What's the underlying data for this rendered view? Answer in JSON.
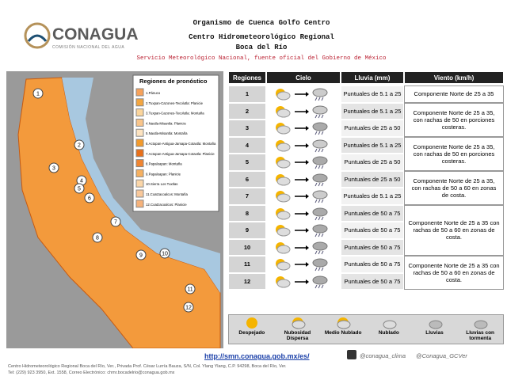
{
  "header": {
    "logo": "CONAGUA",
    "logo_subtitle": "COMISIÓN NACIONAL DEL AGUA",
    "title": "Organismo de Cuenca Golfo Centro",
    "subtitle": "Centro Hidrometeorológico Regional",
    "location": "Boca del Río",
    "source": "Servicio Meteorológico Nacional, fuente oficial del Gobierno de México"
  },
  "map": {
    "legend_title": "Regiones de pronóstico",
    "legend": [
      {
        "label": "1.Pánuco",
        "color": "#f7a25a"
      },
      {
        "label": "2.Tuxpan-Cazones-Tecolutla: Planicie",
        "color": "#f4a640"
      },
      {
        "label": "3.Tuxpan-Cazones-Tecolutla: Montaña",
        "color": "#fbd59c"
      },
      {
        "label": "4.Nautla-Misantla: Planicie",
        "color": "#f9c58a"
      },
      {
        "label": "5.Nautla-Misantla: Montaña",
        "color": "#fde3c0"
      },
      {
        "label": "6.Actopan-Antigua-Jamapa-Cotaxtla: Montaña",
        "color": "#f39a2c"
      },
      {
        "label": "7.Actopan-Antigua-Jamapa-Cotaxtla: Planicie",
        "color": "#e8701a"
      },
      {
        "label": "8.Papaloapan: Montaña",
        "color": "#f08530"
      },
      {
        "label": "9.Papaloapan: Planicie",
        "color": "#f6b060"
      },
      {
        "label": "10.Sierra Los Tuxtlas",
        "color": "#fbd6a8"
      },
      {
        "label": "11.Coatzacoalcos: Montaña",
        "color": "#f9c89a"
      },
      {
        "label": "12.Coatzacoalcos: Planicie",
        "color": "#f6b27a"
      }
    ],
    "region_labels": [
      "1",
      "2",
      "3",
      "4",
      "5",
      "6",
      "7",
      "8",
      "9",
      "10",
      "11",
      "12"
    ]
  },
  "table": {
    "headers": [
      "Regiones",
      "Cielo",
      "Lluvia (mm)",
      "Viento (km/h)"
    ],
    "rows": [
      {
        "region": "1",
        "lluvia": "Puntuales de 5.1 a 25",
        "viento": "Componente Norte de 25 a 35"
      },
      {
        "region": "2",
        "lluvia": "Puntuales de 5.1 a 25",
        "viento": "Componente Norte de 25 a 35, con rachas de 50 en porciones costeras."
      },
      {
        "region": "3",
        "lluvia": "Puntuales de 25 a 50",
        "viento": null
      },
      {
        "region": "4",
        "lluvia": "Puntuales de 5.1 a 25",
        "viento": "Componente Norte de 25 a 35, con rachas de 50 en porciones costeras."
      },
      {
        "region": "5",
        "lluvia": "Puntuales de 25 a 50",
        "viento": null
      },
      {
        "region": "6",
        "lluvia": "Puntuales de 25 a 50",
        "viento": "Componente Norte de 25 a 35, con rachas de 50 a 60 en zonas de costa."
      },
      {
        "region": "7",
        "lluvia": "Puntuales de 5.1 a 25",
        "viento": null
      },
      {
        "region": "8",
        "lluvia": "Puntuales de 50 a 75",
        "viento": "Componente Norte de 25 a 35 con rachas de 50 a 60 en zonas de costa."
      },
      {
        "region": "9",
        "lluvia": "Puntuales de 50 a 75",
        "viento": null
      },
      {
        "region": "10",
        "lluvia": "Puntuales de 50 a 75",
        "viento": null
      },
      {
        "region": "11",
        "lluvia": "Puntuales de 50 a 75",
        "viento": "Componente Norte de 25 a 35 con rachas de 50 a 60 en zonas de costa."
      },
      {
        "region": "12",
        "lluvia": "Puntuales de 50 a 75",
        "viento": null
      }
    ]
  },
  "sky_legend": [
    "Despejado",
    "Nubosidad Dispersa",
    "Medio Nublado",
    "Nublado",
    "Lluvias",
    "Lluvias con tormenta"
  ],
  "footer": {
    "url": "http://smn.conagua.gob.mx/es/",
    "twitter_1": "@conagua_clima",
    "twitter_2": "@Conagua_GCVer",
    "address": "Centro Hidrometeorológico Regional Boca del Río, Ver., Privada Prof. César Lurría Bauza, S/N, Col. Ylang Ylang, C.P. 94298, Boca del Río, Ver.",
    "contact": "Tel: (229) 923 3950, Ext. 1558, Correo Electrónico: chmr.bocadelrio@conagua.gob.mx"
  }
}
